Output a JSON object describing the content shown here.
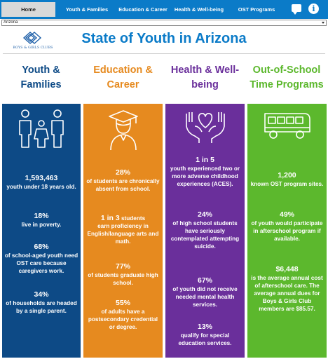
{
  "nav": {
    "items": [
      {
        "label": "Home"
      },
      {
        "label": "Youth & Families"
      },
      {
        "label": "Education & Career"
      },
      {
        "label": "Health & Well-being"
      },
      {
        "label": "OST Programs"
      }
    ],
    "chat_icon": "chat-bubble-icon",
    "info_icon": "info-icon",
    "info_glyph": "i"
  },
  "state_select": {
    "value": "Arizona"
  },
  "logo": {
    "text": "BOYS & GIRLS CLUBS",
    "icon": "boys-girls-clubs-logo"
  },
  "page_title": "State of Youth in Arizona",
  "colors": {
    "nav": "#0b7bc8",
    "youth": "#0d4a86",
    "education": "#e68a1f",
    "health": "#6a2f9b",
    "ost": "#5cb82d"
  },
  "columns": {
    "youth": {
      "heading_l1": "Youth &",
      "heading_l2": "Families",
      "icon": "family-icon",
      "stats": [
        {
          "value": "1,593,463",
          "text": "youth under 18 years old."
        },
        {
          "value": "18%",
          "text": "live in poverty."
        },
        {
          "value": "68%",
          "text": "of school-aged youth need OST care because caregivers work."
        },
        {
          "value": "34%",
          "text": "of households are headed by a single parent."
        }
      ]
    },
    "education": {
      "heading_l1": "Education &",
      "heading_l2": "Career",
      "icon": "graduate-icon",
      "stats": [
        {
          "value": "28%",
          "text": "of students are chronically absent from school."
        },
        {
          "value": "1 in 3",
          "text_after": "students",
          "text": "earn proficiency in English/language arts and math."
        },
        {
          "value": "77%",
          "text": "of students graduate high school."
        },
        {
          "value": "55%",
          "text": "of adults have a postsecondary credential or degree."
        }
      ]
    },
    "health": {
      "heading_l1": "Health & Well-",
      "heading_l2": "being",
      "icon": "hands-heart-icon",
      "stats": [
        {
          "value": "1 in 5",
          "text": "youth experienced two or more adverse childhood experiences (ACES)."
        },
        {
          "value": "24%",
          "text": "of high school students have seriously contemplated attempting suicide."
        },
        {
          "value": "67%",
          "text": "of youth did not receive needed mental health services."
        },
        {
          "value": "13%",
          "text": "qualify for special education services."
        }
      ]
    },
    "ost": {
      "heading_l1": "Out-of-School",
      "heading_l2": "Time Programs",
      "icon": "school-bus-icon",
      "stats": [
        {
          "value": "1,200",
          "text": "known OST program sites."
        },
        {
          "value": "49%",
          "text": "of youth would participate in afterschool program if available."
        },
        {
          "value": "$6,448",
          "text": "is the average annual cost of afterschool care. The average annual dues for Boys & Girls Club members are $85.57."
        }
      ]
    }
  }
}
